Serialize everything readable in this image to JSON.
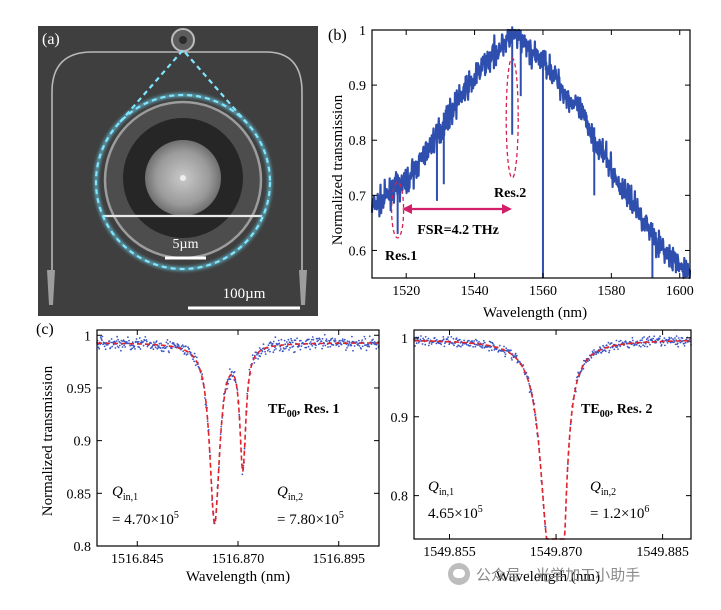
{
  "chart_data": [
    {
      "panel": "(a)",
      "type": "image",
      "scale_bars": [
        "5µm",
        "100µm"
      ]
    },
    {
      "panel": "(b)",
      "type": "line",
      "xlabel": "Wavelength (nm)",
      "ylabel": "Normalized transmission",
      "xlim": [
        1510,
        1603
      ],
      "ylim": [
        0.55,
        1.0
      ],
      "xticks": [
        1520,
        1540,
        1560,
        1580,
        1600
      ],
      "yticks": [
        0.6,
        0.7,
        0.8,
        0.9,
        1.0
      ],
      "ytick_labels": [
        "0.6",
        "0.7",
        "0.8",
        "0.9",
        "1"
      ],
      "color": "#2f4fae",
      "series": [
        {
          "name": "Transmission",
          "x": [
            1510,
            1513,
            1516,
            1519,
            1522,
            1525,
            1528,
            1531,
            1534,
            1537,
            1540,
            1543,
            1546,
            1549,
            1552,
            1555,
            1558,
            1561,
            1564,
            1567,
            1570,
            1573,
            1576,
            1579,
            1582,
            1585,
            1588,
            1591,
            1594,
            1597,
            1600,
            1603
          ],
          "y": [
            0.68,
            0.69,
            0.71,
            0.72,
            0.74,
            0.77,
            0.8,
            0.83,
            0.86,
            0.89,
            0.91,
            0.94,
            0.96,
            0.98,
            0.99,
            0.97,
            0.95,
            0.94,
            0.91,
            0.88,
            0.86,
            0.83,
            0.79,
            0.76,
            0.72,
            0.7,
            0.67,
            0.64,
            0.61,
            0.59,
            0.57,
            0.56
          ]
        }
      ],
      "dips": [
        {
          "x": 1517.5,
          "y": 0.63
        },
        {
          "x": 1529.0,
          "y": 0.69
        },
        {
          "x": 1531.0,
          "y": 0.72
        },
        {
          "x": 1551.0,
          "y": 0.81
        },
        {
          "x": 1553.5,
          "y": 0.88
        },
        {
          "x": 1560.0,
          "y": 0.5
        },
        {
          "x": 1575.0,
          "y": 0.7
        },
        {
          "x": 1592.0,
          "y": 0.55
        }
      ],
      "annotations": {
        "res1": "Res.1",
        "res2": "Res.2",
        "fsr": "FSR=4.2 THz",
        "res1_x": 1517.5,
        "res2_x": 1551.0
      }
    },
    {
      "panel": "(c)",
      "type": "scatter",
      "xlabel": "Wavelength (nm)",
      "ylabel": "Normalized transmission",
      "xlim": [
        1516.835,
        1516.905
      ],
      "ylim": [
        0.8,
        1.005
      ],
      "xticks": [
        1516.845,
        1516.87,
        1516.895
      ],
      "xtick_labels": [
        "1516.845",
        "1516.870",
        "1516.895"
      ],
      "yticks": [
        0.8,
        0.85,
        0.9,
        0.95,
        1.0
      ],
      "ytick_labels": [
        "0.8",
        "0.85",
        "0.9",
        "0.95",
        "1"
      ],
      "mode_label": "TE",
      "mode_sub": "00",
      "mode_suffix": ", Res. 1",
      "series": [
        {
          "name": "Measured data",
          "color": "#3b57c4"
        },
        {
          "name": "Fit",
          "color": "#e3232c"
        }
      ],
      "model": {
        "baseline": 0.993,
        "dips": [
          {
            "x0": 1516.8642,
            "depth": 0.17,
            "width": 0.0015
          },
          {
            "x0": 1516.8712,
            "depth": 0.115,
            "width": 0.0009
          }
        ]
      },
      "q_labels": [
        {
          "symbol": "Q",
          "sub": "in,1",
          "value": "= 4.70×10",
          "exp": "5"
        },
        {
          "symbol": "Q",
          "sub": "in,2",
          "value": "= 7.80×10",
          "exp": "5"
        }
      ]
    },
    {
      "panel": "(c-right)",
      "type": "scatter",
      "xlabel": "Wavelength (nm)",
      "ylabel": "",
      "xlim": [
        1549.85,
        1549.889
      ],
      "ylim": [
        0.745,
        1.01
      ],
      "xticks": [
        1549.855,
        1549.87,
        1549.885
      ],
      "xtick_labels": [
        "1549.855",
        "1549.870",
        "1549.885"
      ],
      "yticks": [
        0.8,
        0.9,
        1.0
      ],
      "ytick_labels": [
        "0.8",
        "0.9",
        "1"
      ],
      "mode_label": "TE",
      "mode_sub": "00",
      "mode_suffix": ", Res. 2",
      "series": [
        {
          "name": "Measured data",
          "color": "#3b57c4"
        },
        {
          "name": "Fit",
          "color": "#e3232c"
        }
      ],
      "model": {
        "baseline": 0.998,
        "dips": [
          {
            "x0": 1549.8689,
            "depth": 0.23,
            "width": 0.0014
          },
          {
            "x0": 1549.8708,
            "depth": 0.24,
            "width": 0.0008
          }
        ]
      },
      "q_labels": [
        {
          "symbol": "Q",
          "sub": "in,1",
          "value": "4.65×10",
          "exp": "5"
        },
        {
          "symbol": "Q",
          "sub": "in,2",
          "value": "= 1.2×10",
          "exp": "6"
        }
      ]
    }
  ],
  "panel_labels": {
    "a": "(a)",
    "b": "(b)",
    "c": "(c)"
  },
  "watermark": "公众号 · 光学加工小助手"
}
